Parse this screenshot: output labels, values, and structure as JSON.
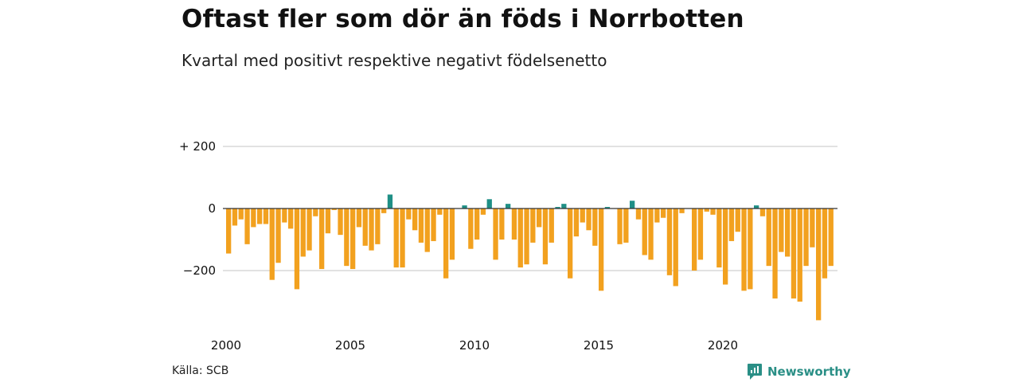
{
  "title": "Oftast fler som dör än föds i Norrbotten",
  "subtitle": "Kvartal med positivt respektive negativt födelsenetto",
  "source": "Källa: SCB",
  "brand": "Newsworthy",
  "colors": {
    "positive": "#1f8f86",
    "negative": "#f2a11f",
    "grid": "#d8d8d8",
    "zero": "#333333"
  },
  "chart_data": {
    "type": "bar",
    "ylim": [
      -360,
      200
    ],
    "yticks": [
      {
        "value": 200,
        "label": "+ 200"
      },
      {
        "value": 0,
        "label": "0"
      },
      {
        "value": -200,
        "label": "−200"
      }
    ],
    "xticks": [
      {
        "year": 2000,
        "label": "2000"
      },
      {
        "year": 2005,
        "label": "2005"
      },
      {
        "year": 2010,
        "label": "2010"
      },
      {
        "year": 2015,
        "label": "2015"
      },
      {
        "year": 2020,
        "label": "2020"
      }
    ],
    "start_year": 2000,
    "grid": true,
    "values": [
      -145,
      -55,
      -35,
      -115,
      -60,
      -50,
      -50,
      -230,
      -175,
      -45,
      -65,
      -260,
      -155,
      -135,
      -25,
      -195,
      -80,
      -5,
      -85,
      -185,
      -195,
      -60,
      -120,
      -135,
      -115,
      -15,
      45,
      -190,
      -190,
      -35,
      -70,
      -110,
      -140,
      -105,
      -20,
      -225,
      -165,
      0,
      10,
      -130,
      -100,
      -20,
      30,
      -165,
      -100,
      15,
      -100,
      -190,
      -180,
      -110,
      -60,
      -180,
      -110,
      5,
      15,
      -225,
      -90,
      -45,
      -70,
      -120,
      -265,
      5,
      0,
      -115,
      -110,
      25,
      -35,
      -150,
      -165,
      -45,
      -30,
      -215,
      -250,
      -15,
      0,
      -200,
      -165,
      -10,
      -20,
      -190,
      -245,
      -105,
      -75,
      -265,
      -260,
      10,
      -25,
      -185,
      -290,
      -140,
      -155,
      -290,
      -300,
      -185,
      -125,
      -360,
      -225,
      -185
    ]
  }
}
